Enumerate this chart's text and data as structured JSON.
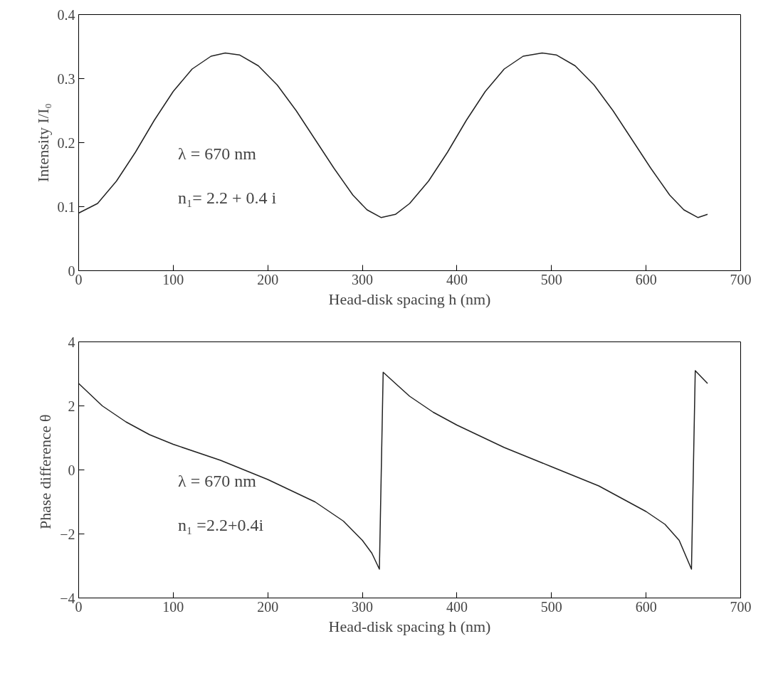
{
  "chart_data": [
    {
      "type": "line",
      "xlabel": "Head-disk spacing h (nm)",
      "ylabel": "Intensity I/I₀",
      "annotations": [
        "λ = 670 nm",
        "n₁= 2.2 + 0.4 i"
      ],
      "xlim": [
        0,
        700
      ],
      "ylim": [
        0,
        0.4
      ],
      "xticks": [
        0,
        100,
        200,
        300,
        400,
        500,
        600,
        700
      ],
      "yticks": [
        0,
        0.1,
        0.2,
        0.3,
        0.4
      ],
      "grid": false,
      "marker": "none",
      "line_style": "solid",
      "series": [
        {
          "color": "#222222",
          "x": [
            0,
            20,
            40,
            60,
            80,
            100,
            120,
            140,
            155,
            170,
            190,
            210,
            230,
            250,
            270,
            290,
            305,
            320,
            335,
            350,
            370,
            390,
            410,
            430,
            450,
            470,
            490,
            505,
            525,
            545,
            565,
            585,
            605,
            625,
            640,
            655,
            665
          ],
          "values": [
            0.09,
            0.105,
            0.14,
            0.185,
            0.235,
            0.28,
            0.315,
            0.335,
            0.34,
            0.337,
            0.32,
            0.29,
            0.25,
            0.205,
            0.16,
            0.118,
            0.095,
            0.083,
            0.088,
            0.105,
            0.14,
            0.185,
            0.235,
            0.28,
            0.315,
            0.335,
            0.34,
            0.337,
            0.32,
            0.29,
            0.25,
            0.205,
            0.16,
            0.118,
            0.095,
            0.083,
            0.088
          ]
        }
      ]
    },
    {
      "type": "line",
      "xlabel": "Head-disk spacing h (nm)",
      "ylabel": "Phase difference  θ",
      "annotations": [
        "λ = 670 nm",
        "n₁ =2.2+0.4i"
      ],
      "xlim": [
        0,
        700
      ],
      "ylim": [
        -4,
        4
      ],
      "xticks": [
        0,
        100,
        200,
        300,
        400,
        500,
        600,
        700
      ],
      "yticks": [
        -4,
        -2,
        0,
        2,
        4
      ],
      "grid": false,
      "marker": "none",
      "line_style": "solid",
      "series": [
        {
          "color": "#222222",
          "x": [
            0,
            25,
            50,
            75,
            100,
            150,
            200,
            250,
            280,
            300,
            310,
            318,
            322,
            335,
            350,
            375,
            400,
            450,
            500,
            550,
            600,
            620,
            635,
            648,
            652,
            665
          ],
          "values": [
            2.7,
            2.0,
            1.5,
            1.1,
            0.8,
            0.3,
            -0.3,
            -1.0,
            -1.6,
            -2.2,
            -2.6,
            -3.1,
            3.05,
            2.7,
            2.3,
            1.8,
            1.4,
            0.7,
            0.1,
            -0.5,
            -1.3,
            -1.7,
            -2.2,
            -3.1,
            3.1,
            2.7
          ]
        }
      ]
    }
  ]
}
